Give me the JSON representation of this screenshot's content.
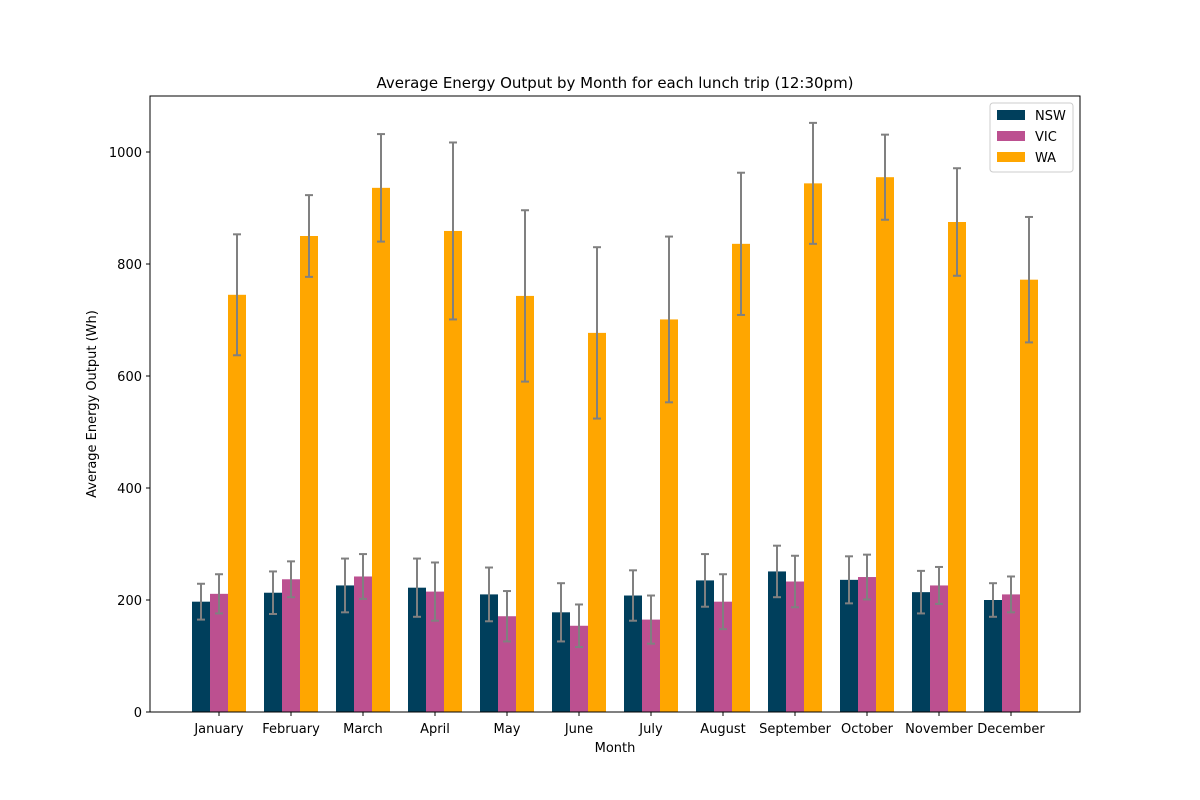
{
  "chart_data": {
    "type": "bar",
    "title": "Average Energy Output by Month for each lunch trip (12:30pm)",
    "xlabel": "Month",
    "ylabel": "Average Energy Output (Wh)",
    "ylim": [
      0,
      1100
    ],
    "yticks": [
      0,
      200,
      400,
      600,
      800,
      1000
    ],
    "legend_position": "top-right",
    "grid": false,
    "error_bar_color": "#808080",
    "categories": [
      "January",
      "February",
      "March",
      "April",
      "May",
      "June",
      "July",
      "August",
      "September",
      "October",
      "November",
      "December"
    ],
    "series": [
      {
        "name": "NSW",
        "color": "#003f5c",
        "values": [
          197,
          213,
          226,
          222,
          210,
          178,
          208,
          235,
          251,
          236,
          214,
          200
        ],
        "errors": [
          32,
          38,
          48,
          52,
          48,
          52,
          45,
          47,
          46,
          42,
          38,
          30
        ]
      },
      {
        "name": "VIC",
        "color": "#bc5090",
        "values": [
          211,
          237,
          242,
          215,
          171,
          154,
          165,
          197,
          233,
          241,
          226,
          210
        ],
        "errors": [
          35,
          32,
          40,
          52,
          45,
          38,
          43,
          49,
          46,
          40,
          33,
          32
        ]
      },
      {
        "name": "WA",
        "color": "#ffa600",
        "values": [
          745,
          850,
          936,
          859,
          743,
          677,
          701,
          836,
          944,
          955,
          875,
          772
        ],
        "errors": [
          108,
          73,
          96,
          158,
          153,
          153,
          148,
          127,
          108,
          76,
          96,
          112
        ]
      }
    ]
  }
}
